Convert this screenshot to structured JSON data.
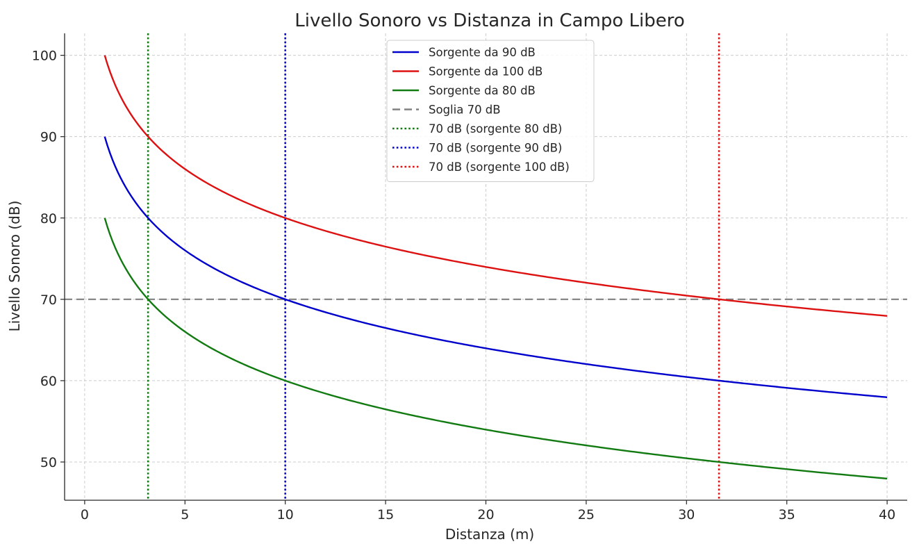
{
  "chart_data": {
    "type": "line",
    "title": "Livello Sonoro vs Distanza in Campo Libero",
    "xlabel": "Distanza (m)",
    "ylabel": "Livello Sonoro (dB)",
    "xlim": [
      -1,
      41
    ],
    "ylim": [
      45.3,
      102.7
    ],
    "xticks": [
      0,
      5,
      10,
      15,
      20,
      25,
      30,
      35,
      40
    ],
    "yticks": [
      50,
      60,
      70,
      80,
      90,
      100
    ],
    "grid": true,
    "legend_position": "top-center",
    "series": [
      {
        "name": "Sorgente da 90 dB",
        "color": "#0000cc",
        "style": "solid",
        "x": [
          1,
          1.5,
          2,
          3,
          4,
          5,
          6,
          8,
          10,
          12,
          15,
          20,
          25,
          30,
          35,
          40
        ],
        "y": [
          90,
          86.5,
          84,
          80.5,
          78,
          76,
          74.4,
          71.9,
          70,
          68.4,
          66.5,
          64,
          62,
          60.5,
          59.1,
          58
        ]
      },
      {
        "name": "Sorgente da 100 dB",
        "color": "#dd1111",
        "style": "solid",
        "x": [
          1,
          1.5,
          2,
          3,
          4,
          5,
          6,
          8,
          10,
          12,
          15,
          20,
          25,
          30,
          35,
          40
        ],
        "y": [
          100,
          96.5,
          94,
          90.5,
          88,
          86,
          84.4,
          81.9,
          80,
          78.4,
          76.5,
          74,
          72,
          70.5,
          69.1,
          68
        ]
      },
      {
        "name": "Sorgente da 80 dB",
        "color": "#117a11",
        "style": "solid",
        "x": [
          1,
          1.5,
          2,
          3,
          4,
          5,
          6,
          8,
          10,
          12,
          15,
          20,
          25,
          30,
          35,
          40
        ],
        "y": [
          80,
          76.5,
          74,
          70.5,
          68,
          66,
          64.4,
          61.9,
          60,
          58.4,
          56.5,
          54,
          52,
          50.5,
          49.1,
          48
        ]
      }
    ],
    "reference_lines": [
      {
        "name": "Soglia 70 dB",
        "orientation": "horizontal",
        "value": 70,
        "color": "#808080",
        "style": "dashed"
      },
      {
        "name": "70 dB (sorgente 80 dB)",
        "orientation": "vertical",
        "value": 3.16,
        "color": "#117a11",
        "style": "dotted"
      },
      {
        "name": "70 dB (sorgente 90 dB)",
        "orientation": "vertical",
        "value": 10,
        "color": "#0000cc",
        "style": "dotted"
      },
      {
        "name": "70 dB (sorgente 100 dB)",
        "orientation": "vertical",
        "value": 31.62,
        "color": "#dd1111",
        "style": "dotted"
      }
    ]
  }
}
